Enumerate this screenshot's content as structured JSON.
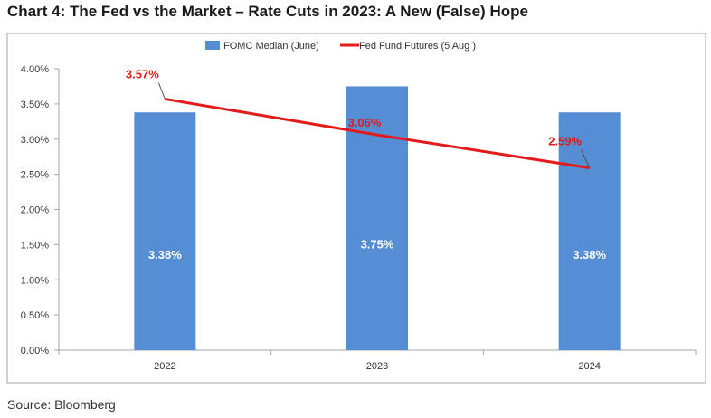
{
  "header": {
    "title": "Chart 4: The Fed vs the Market – Rate Cuts in 2023: A New (False) Hope"
  },
  "footer": {
    "source": "Source: Bloomberg"
  },
  "chart_data": {
    "type": "bar+line",
    "categories": [
      "2022",
      "2023",
      "2024"
    ],
    "ylim": [
      0,
      4.0
    ],
    "y_ticks": [
      0,
      0.5,
      1.0,
      1.5,
      2.0,
      2.5,
      3.0,
      3.5,
      4.0
    ],
    "y_tick_labels": [
      "0.00%",
      "0.50%",
      "1.00%",
      "1.50%",
      "2.00%",
      "2.50%",
      "3.00%",
      "3.50%",
      "4.00%"
    ],
    "grid": false,
    "legend_position": "top",
    "series": [
      {
        "name": "FOMC Median (June)",
        "type": "bar",
        "values": [
          3.38,
          3.75,
          3.38
        ],
        "labels": [
          "3.38%",
          "3.75%",
          "3.38%"
        ],
        "color": "#558ed5"
      },
      {
        "name": "Fed Fund Futures (5 Aug )",
        "type": "line",
        "values": [
          3.57,
          3.06,
          2.59
        ],
        "labels": [
          "3.57%",
          "3.06%",
          "2.59%"
        ],
        "color": "#e31b1b"
      }
    ]
  }
}
